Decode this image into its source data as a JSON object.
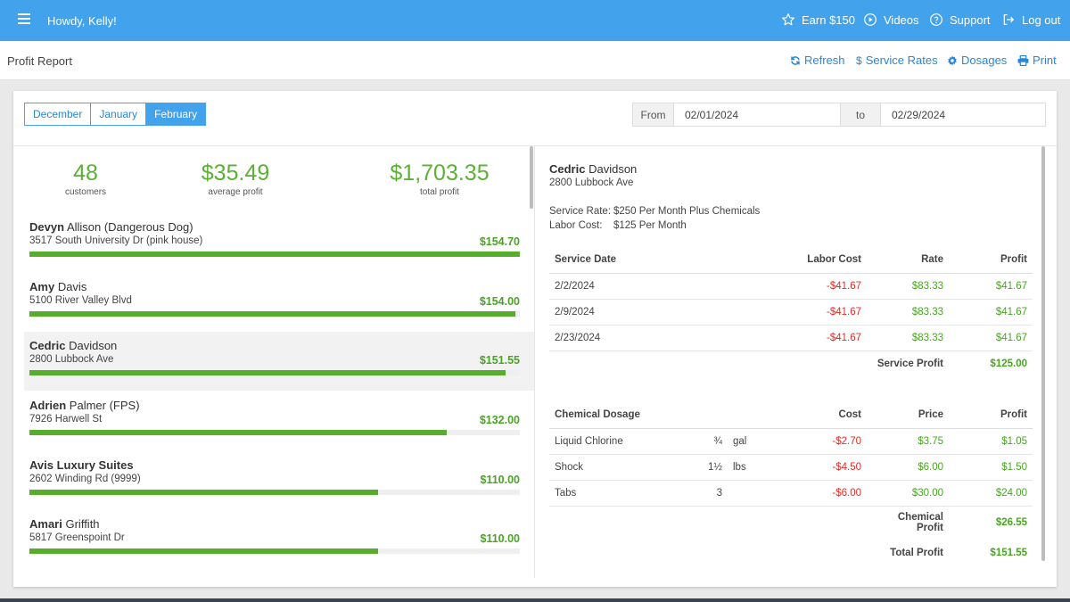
{
  "topbar": {
    "greeting": "Howdy, Kelly!",
    "earn": "Earn $150",
    "videos": "Videos",
    "support": "Support",
    "logout": "Log out"
  },
  "subheader": {
    "title": "Profit Report",
    "refresh": "Refresh",
    "service_rates": "Service Rates",
    "dosages": "Dosages",
    "print": "Print"
  },
  "months": [
    "December",
    "January",
    "February"
  ],
  "active_month": "February",
  "daterange": {
    "from_label": "From",
    "from_value": "02/01/2024",
    "to_label": "to",
    "to_value": "02/29/2024"
  },
  "stats": {
    "customers": "48",
    "customers_label": "customers",
    "average_profit": "$35.49",
    "average_profit_label": "average profit",
    "total_profit": "$1,703.35",
    "total_profit_label": "total profit"
  },
  "customers": [
    {
      "first": "Devyn",
      "last": "Allison (Dangerous Dog)",
      "address": "3517 South University Dr (pink house)",
      "amount": "$154.70",
      "fraction": 1.0
    },
    {
      "first": "Amy",
      "last": "Davis",
      "address": "5100 River Valley Blvd",
      "amount": "$154.00",
      "fraction": 0.99
    },
    {
      "first": "Cedric",
      "last": "Davidson",
      "address": "2800 Lubbock Ave",
      "amount": "$151.55",
      "fraction": 0.97
    },
    {
      "first": "Adrien",
      "last": "Palmer (FPS)",
      "address": "7926 Harwell St",
      "amount": "$132.00",
      "fraction": 0.85
    },
    {
      "first": "Avis Luxury Suites",
      "last": "",
      "address": "2602 Winding Rd (9999)",
      "amount": "$110.00",
      "fraction": 0.71
    },
    {
      "first": "Amari",
      "last": "Griffith",
      "address": "5817 Greenspoint Dr",
      "amount": "$110.00",
      "fraction": 0.71
    }
  ],
  "selected_customer": {
    "first": "Cedric",
    "last": "Davidson",
    "address": "2800 Lubbock Ave",
    "service_rate_label": "Service Rate:",
    "service_rate": "$250 Per Month Plus Chemicals",
    "labor_cost_label": "Labor Cost:",
    "labor_cost": "$125 Per Month"
  },
  "service_table": {
    "headers": [
      "Service Date",
      "Labor Cost",
      "Rate",
      "Profit"
    ],
    "rows": [
      [
        "2/2/2024",
        "-$41.67",
        "$83.33",
        "$41.67"
      ],
      [
        "2/9/2024",
        "-$41.67",
        "$83.33",
        "$41.67"
      ],
      [
        "2/23/2024",
        "-$41.67",
        "$83.33",
        "$41.67"
      ]
    ],
    "summary_label": "Service Profit",
    "summary_value": "$125.00"
  },
  "chemical_table": {
    "headers": [
      "Chemical Dosage",
      "Cost",
      "Price",
      "Profit"
    ],
    "rows": [
      [
        "Liquid Chlorine",
        "¾",
        "gal",
        "-$2.70",
        "$3.75",
        "$1.05"
      ],
      [
        "Shock",
        "1½",
        "lbs",
        "-$4.50",
        "$6.00",
        "$1.50"
      ],
      [
        "Tabs",
        "3",
        "",
        "-$6.00",
        "$30.00",
        "$24.00"
      ]
    ],
    "chemical_profit_label": "Chemical Profit",
    "chemical_profit_value": "$26.55",
    "total_profit_label": "Total Profit",
    "total_profit_value": "$151.55"
  },
  "colors": {
    "topbar": "#42a2ec",
    "link": "#2a86d8",
    "positive": "#4aa325",
    "negative": "#d9302a"
  }
}
